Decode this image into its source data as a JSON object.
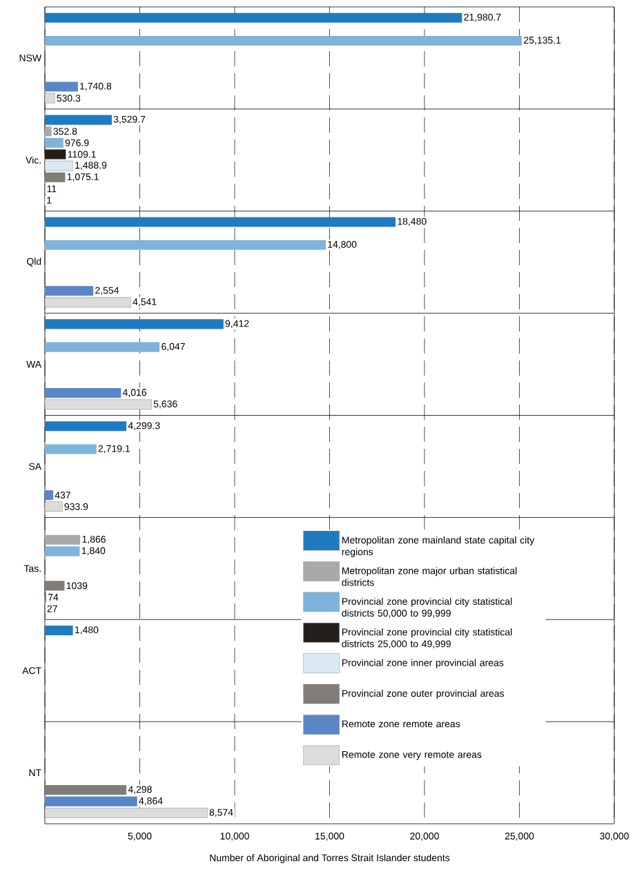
{
  "chart_data": {
    "type": "bar",
    "orientation": "horizontal",
    "xlabel": "Number of Aboriginal and Torres Strait Islander students",
    "categories": [
      "NSW",
      "Vic.",
      "Qld",
      "WA",
      "SA",
      "Tas.",
      "ACT",
      "NT"
    ],
    "xlim": [
      0,
      30000
    ],
    "xticks": [
      {
        "value": 0,
        "label": null
      },
      {
        "value": 5000,
        "label": "5,000"
      },
      {
        "value": 10000,
        "label": "10,000"
      },
      {
        "value": 15000,
        "label": "15,000"
      },
      {
        "value": 20000,
        "label": "20,000"
      },
      {
        "value": 25000,
        "label": "25,000"
      },
      {
        "value": 30000,
        "label": "30,000"
      }
    ],
    "grid": "x",
    "legend": "right",
    "series": [
      {
        "name": "Metropolitan zone mainland state capital city regions",
        "color": "#1f7bc1",
        "values": [
          21980.7,
          3529.7,
          18480,
          9412,
          4299.3,
          null,
          1480,
          null
        ],
        "value_labels": [
          "21,980.7",
          "3,529.7",
          "18,480",
          "9,412",
          "4,299.3",
          null,
          "1,480",
          null
        ]
      },
      {
        "name": "Metropolitan zone major urban statistical districts",
        "color": "#a9a9a7",
        "values": [
          null,
          352.8,
          null,
          null,
          null,
          1866,
          null,
          null
        ],
        "value_labels": [
          null,
          "352.8",
          null,
          null,
          null,
          "1,866",
          null,
          null
        ]
      },
      {
        "name": "Provincial zone provincial city statistical districts 50,000 to 99,999",
        "color": "#7fb3dc",
        "values": [
          25135.1,
          976.9,
          14800,
          6047,
          2719.1,
          1840,
          null,
          null
        ],
        "value_labels": [
          "25,135.1",
          "976.9",
          "14,800",
          "6,047",
          "2,719.1",
          "1,840",
          null,
          null
        ]
      },
      {
        "name": "Provincial zone provincial city statistical districts 25,000 to 49,999",
        "color": "#231f1c",
        "values": [
          null,
          1109.1,
          null,
          null,
          null,
          null,
          null,
          null
        ],
        "value_labels": [
          null,
          "1109.1",
          null,
          null,
          null,
          null,
          null,
          null
        ]
      },
      {
        "name": "Provincial zone inner provincial areas",
        "color": "#dbe9f5",
        "values": [
          null,
          1488.9,
          null,
          null,
          null,
          null,
          null,
          null
        ],
        "value_labels": [
          null,
          "1,488.9",
          null,
          null,
          null,
          null,
          null,
          null
        ]
      },
      {
        "name": "Provincial zone outer provincial areas",
        "color": "#807d78",
        "values": [
          null,
          1075.1,
          null,
          null,
          null,
          1039,
          null,
          4298
        ],
        "value_labels": [
          null,
          "1,075.1",
          null,
          null,
          null,
          "1039",
          null,
          "4,298"
        ]
      },
      {
        "name": "Remote zone remote areas",
        "color": "#5a86c8",
        "values": [
          1740.8,
          11,
          2554,
          4016,
          437,
          74,
          null,
          4864
        ],
        "value_labels": [
          "1,740.8",
          "11",
          "2,554",
          "4,016",
          "437",
          "74",
          null,
          "4,864"
        ]
      },
      {
        "name": "Remote zone very remote areas",
        "color": "#dcdcdc",
        "values": [
          530.3,
          1,
          4541,
          5636,
          933.9,
          27,
          null,
          8574
        ],
        "value_labels": [
          "530.3",
          "1",
          "4,541",
          "5,636",
          "933.9",
          "27",
          null,
          "8,574"
        ]
      }
    ]
  }
}
